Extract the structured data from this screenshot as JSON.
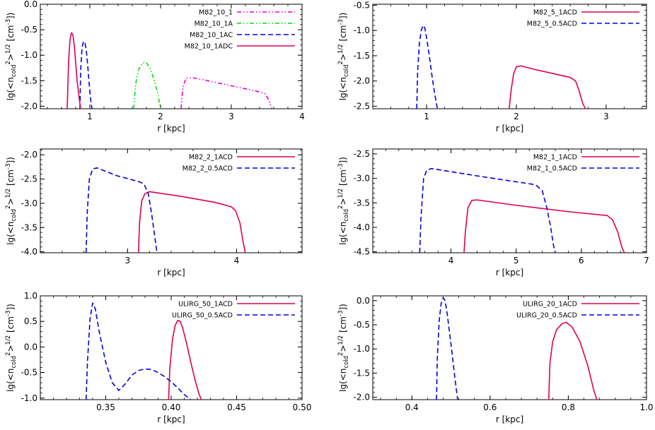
{
  "figure": {
    "panel_count": 6
  },
  "chart_data": [
    {
      "type": "line",
      "xlabel": "r [kpc]",
      "ylabel": "lg(<n_cold^2>^1/2 [cm^-3])",
      "xlim": [
        0.3,
        4.0
      ],
      "ylim": [
        -2.05,
        0.0
      ],
      "xticks": [
        1,
        2,
        3,
        4
      ],
      "xtick_labels": [
        "1",
        "2",
        "3",
        "4"
      ],
      "yticks": [
        0.0,
        -0.5,
        -1.0,
        -1.5,
        -2.0
      ],
      "ytick_labels": [
        "0.0",
        "-0.5",
        "-1.0",
        "-1.5",
        "-2.0"
      ],
      "legend_position": "top-right",
      "series": [
        {
          "name": "M82_10_1",
          "color": "#e000e0",
          "dash": "dashdotdot",
          "x": [
            2.29,
            2.3,
            2.32,
            2.36,
            2.45,
            2.6,
            2.8,
            3.0,
            3.2,
            3.4,
            3.48,
            3.52,
            3.55,
            3.57
          ],
          "y": [
            -2.05,
            -1.85,
            -1.6,
            -1.45,
            -1.44,
            -1.48,
            -1.54,
            -1.6,
            -1.66,
            -1.72,
            -1.76,
            -1.85,
            -1.95,
            -2.05
          ]
        },
        {
          "name": "M82_10_1A",
          "color": "#00e000",
          "dash": "dashdotdot",
          "x": [
            1.62,
            1.64,
            1.66,
            1.7,
            1.75,
            1.8,
            1.85,
            1.9,
            1.95,
            1.98,
            2.0
          ],
          "y": [
            -2.05,
            -1.7,
            -1.45,
            -1.25,
            -1.15,
            -1.15,
            -1.25,
            -1.45,
            -1.7,
            -1.9,
            -2.05
          ]
        },
        {
          "name": "M82_10_1AC",
          "color": "#0000e0",
          "dash": "dashed",
          "x": [
            0.86,
            0.87,
            0.89,
            0.91,
            0.93,
            0.95,
            0.97,
            0.99,
            1.01,
            1.03
          ],
          "y": [
            -2.05,
            -1.3,
            -0.85,
            -0.73,
            -0.75,
            -0.9,
            -1.2,
            -1.55,
            -1.85,
            -2.05
          ]
        },
        {
          "name": "M82_10_1ADC",
          "color": "#e0004a",
          "dash": "solid",
          "x": [
            0.68,
            0.7,
            0.72,
            0.74,
            0.76,
            0.78,
            0.8,
            0.82,
            0.85,
            0.87
          ],
          "y": [
            -2.05,
            -1.1,
            -0.7,
            -0.56,
            -0.6,
            -0.8,
            -1.15,
            -1.5,
            -1.85,
            -2.05
          ]
        }
      ]
    },
    {
      "type": "line",
      "xlabel": "r [kpc]",
      "ylabel": "lg(<n_cold^2>^1/2 [cm^-3])",
      "xlim": [
        0.4,
        3.45
      ],
      "ylim": [
        -2.55,
        -0.48
      ],
      "xticks": [
        1,
        2,
        3
      ],
      "xtick_labels": [
        "1",
        "2",
        "3"
      ],
      "yticks": [
        -0.5,
        -1.0,
        -1.5,
        -2.0,
        -2.5
      ],
      "ytick_labels": [
        "-0.5",
        "-1.0",
        "-1.5",
        "-2.0",
        "-2.5"
      ],
      "legend_position": "top-right",
      "series": [
        {
          "name": "M82_5_1ACD",
          "color": "#e0004a",
          "dash": "solid",
          "x": [
            1.92,
            1.94,
            1.97,
            2.0,
            2.05,
            2.2,
            2.4,
            2.6,
            2.66,
            2.7,
            2.74,
            2.77
          ],
          "y": [
            -2.55,
            -2.2,
            -1.85,
            -1.72,
            -1.7,
            -1.77,
            -1.85,
            -1.93,
            -2.0,
            -2.2,
            -2.45,
            -2.55
          ]
        },
        {
          "name": "M82_5_0.5ACD",
          "color": "#0000e0",
          "dash": "dashed",
          "x": [
            0.89,
            0.9,
            0.92,
            0.94,
            0.96,
            0.98,
            1.0,
            1.03,
            1.06,
            1.09,
            1.12
          ],
          "y": [
            -2.55,
            -1.8,
            -1.25,
            -1.0,
            -0.9,
            -0.95,
            -1.15,
            -1.5,
            -1.9,
            -2.25,
            -2.55
          ]
        }
      ]
    },
    {
      "type": "line",
      "xlabel": "r [kpc]",
      "ylabel": "lg(<n_cold^2>^1/2 [cm^-3])",
      "xlim": [
        2.2,
        4.6
      ],
      "ylim": [
        -4.02,
        -1.88
      ],
      "xticks": [
        3,
        4
      ],
      "xtick_labels": [
        "3",
        "4"
      ],
      "yticks": [
        -2.0,
        -2.5,
        -3.0,
        -3.5,
        -4.0
      ],
      "ytick_labels": [
        "-2.0",
        "-2.5",
        "-3.0",
        "-3.5",
        "-4.0"
      ],
      "legend_position": "top-right",
      "series": [
        {
          "name": "M82_2_1ACD",
          "color": "#e0004a",
          "dash": "solid",
          "x": [
            3.1,
            3.11,
            3.13,
            3.16,
            3.2,
            3.5,
            3.8,
            3.95,
            3.99,
            4.03,
            4.06,
            4.08
          ],
          "y": [
            -4.02,
            -3.4,
            -2.95,
            -2.8,
            -2.76,
            -2.86,
            -2.98,
            -3.07,
            -3.15,
            -3.4,
            -3.8,
            -4.02
          ]
        },
        {
          "name": "M82_2_0.5ACD",
          "color": "#0000e0",
          "dash": "dashed",
          "x": [
            2.62,
            2.63,
            2.65,
            2.68,
            2.72,
            2.9,
            3.1,
            3.15,
            3.19,
            3.22,
            3.25,
            3.27
          ],
          "y": [
            -4.02,
            -3.2,
            -2.5,
            -2.29,
            -2.27,
            -2.43,
            -2.55,
            -2.6,
            -2.8,
            -3.2,
            -3.7,
            -4.02
          ]
        }
      ]
    },
    {
      "type": "line",
      "xlabel": "r [kpc]",
      "ylabel": "lg(<n_cold^2>^1/2 [cm^-3])",
      "xlim": [
        2.8,
        7.0
      ],
      "ylim": [
        -4.52,
        -2.4
      ],
      "xticks": [
        4,
        5,
        6,
        7
      ],
      "xtick_labels": [
        "4",
        "5",
        "6",
        "7"
      ],
      "yticks": [
        -2.5,
        -3.0,
        -3.5,
        -4.0,
        -4.5
      ],
      "ytick_labels": [
        "-2.5",
        "-3.0",
        "-3.5",
        "-4.0",
        "-4.5"
      ],
      "legend_position": "top-right",
      "series": [
        {
          "name": "M82_1_1ACD",
          "color": "#e0004a",
          "dash": "solid",
          "x": [
            4.2,
            4.22,
            4.26,
            4.32,
            4.4,
            5.0,
            5.8,
            6.4,
            6.48,
            6.56,
            6.62,
            6.66
          ],
          "y": [
            -4.52,
            -4.1,
            -3.6,
            -3.45,
            -3.44,
            -3.55,
            -3.68,
            -3.76,
            -3.85,
            -4.1,
            -4.4,
            -4.52
          ]
        },
        {
          "name": "M82_1_0.5ACD",
          "color": "#0000e0",
          "dash": "dashed",
          "x": [
            3.52,
            3.54,
            3.58,
            3.63,
            3.7,
            4.5,
            5.3,
            5.4,
            5.47,
            5.53,
            5.57,
            5.6
          ],
          "y": [
            -4.52,
            -3.8,
            -3.0,
            -2.83,
            -2.8,
            -2.97,
            -3.13,
            -3.25,
            -3.6,
            -4.0,
            -4.35,
            -4.52
          ]
        }
      ]
    },
    {
      "type": "line",
      "xlabel": "r [kpc]",
      "ylabel": "lg(<n_cold^2>^1/2 [cm^-3])",
      "xlim": [
        0.3,
        0.5
      ],
      "ylim": [
        -1.03,
        1.0
      ],
      "xticks": [
        0.35,
        0.4,
        0.45,
        0.5
      ],
      "xtick_labels": [
        "0.35",
        "0.40",
        "0.45",
        "0.50"
      ],
      "yticks": [
        1.0,
        0.5,
        0.0,
        -0.5,
        -1.0
      ],
      "ytick_labels": [
        "1.0",
        "0.5",
        "0.0",
        "-0.5",
        "-1.0"
      ],
      "legend_position": "top-right",
      "series": [
        {
          "name": "ULIRG_50_1ACD",
          "color": "#e0004a",
          "dash": "solid",
          "x": [
            0.398,
            0.399,
            0.401,
            0.403,
            0.405,
            0.407,
            0.409,
            0.412,
            0.415,
            0.418,
            0.421,
            0.423
          ],
          "y": [
            -1.03,
            -0.4,
            0.15,
            0.42,
            0.52,
            0.5,
            0.35,
            0.05,
            -0.3,
            -0.62,
            -0.9,
            -1.03
          ]
        },
        {
          "name": "ULIRG_50_0.5ACD",
          "color": "#0000e0",
          "dash": "dashed",
          "x": [
            0.335,
            0.336,
            0.338,
            0.34,
            0.342,
            0.345,
            0.35,
            0.355,
            0.36,
            0.365,
            0.37,
            0.375,
            0.38,
            0.385,
            0.39,
            0.395,
            0.4,
            0.405,
            0.41,
            0.415
          ],
          "y": [
            -1.03,
            -0.3,
            0.55,
            0.86,
            0.75,
            0.3,
            -0.3,
            -0.7,
            -0.85,
            -0.72,
            -0.55,
            -0.46,
            -0.43,
            -0.44,
            -0.5,
            -0.58,
            -0.68,
            -0.8,
            -0.93,
            -1.03
          ]
        }
      ]
    },
    {
      "type": "line",
      "xlabel": "r [kpc]",
      "ylabel": "lg(<n_cold^2>^1/2 [cm^-3])",
      "xlim": [
        0.3,
        1.0
      ],
      "ylim": [
        -2.05,
        0.1
      ],
      "xticks": [
        0.4,
        0.6,
        0.8,
        1.0
      ],
      "xtick_labels": [
        "0.4",
        "0.6",
        "0.8",
        "1.0"
      ],
      "yticks": [
        0.0,
        -0.5,
        -1.0,
        -1.5,
        -2.0
      ],
      "ytick_labels": [
        "0.0",
        "-0.5",
        "-1.0",
        "-1.5",
        "-2.0"
      ],
      "legend_position": "top-right",
      "series": [
        {
          "name": "ULIRG_20_1ACD",
          "color": "#e0004a",
          "dash": "solid",
          "x": [
            0.75,
            0.753,
            0.76,
            0.77,
            0.785,
            0.795,
            0.81,
            0.83,
            0.85,
            0.865,
            0.873
          ],
          "y": [
            -2.05,
            -1.3,
            -0.85,
            -0.6,
            -0.47,
            -0.45,
            -0.55,
            -0.85,
            -1.35,
            -1.85,
            -2.05
          ]
        },
        {
          "name": "ULIRG_20_0.5ACD",
          "color": "#0000e0",
          "dash": "dashed",
          "x": [
            0.463,
            0.465,
            0.47,
            0.475,
            0.48,
            0.485,
            0.49,
            0.5,
            0.51,
            0.517
          ],
          "y": [
            -2.05,
            -1.2,
            -0.4,
            -0.05,
            0.06,
            0.0,
            -0.25,
            -0.9,
            -1.6,
            -2.05
          ]
        }
      ]
    }
  ]
}
